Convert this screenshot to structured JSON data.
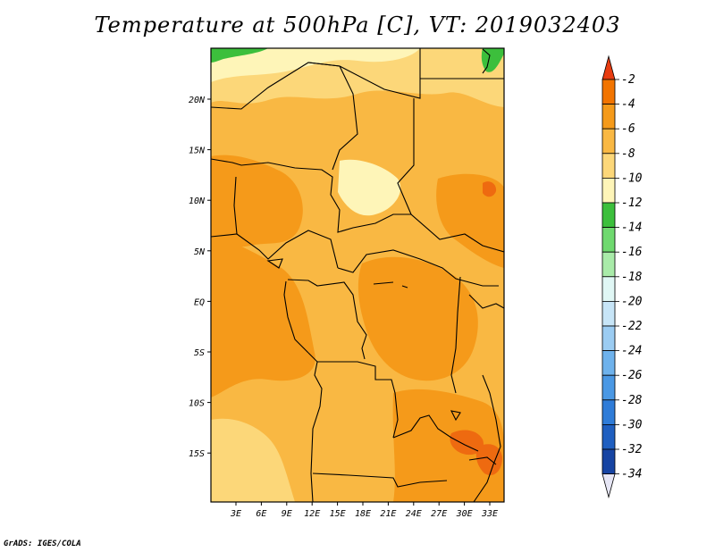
{
  "title": "Temperature at 500hPa [C], VT: 2019032403",
  "credit": "GrADS: IGES/COLA",
  "latitude_labels": [
    "20N",
    "15N",
    "10N",
    "5N",
    "EQ",
    "5S",
    "10S",
    "15S"
  ],
  "longitude_labels": [
    "3E",
    "6E",
    "9E",
    "12E",
    "15E",
    "18E",
    "21E",
    "24E",
    "27E",
    "30E",
    "33E"
  ],
  "colorbar": {
    "labels": [
      "-2",
      "-4",
      "-6",
      "-8",
      "-10",
      "-12",
      "-14",
      "-16",
      "-18",
      "-20",
      "-22",
      "-24",
      "-26",
      "-28",
      "-30",
      "-32",
      "-34"
    ],
    "colors": [
      "#e83c10",
      "#f27400",
      "#f59a1a",
      "#f9b843",
      "#fcd779",
      "#fef5b8",
      "#3cbf3c",
      "#6fd96f",
      "#a9eba9",
      "#e0f7f5",
      "#c7e5f7",
      "#9bccf2",
      "#6eb2ec",
      "#4a98e4",
      "#2f7cd8",
      "#1f5fc0",
      "#1644a3",
      "#0b1f6f"
    ],
    "top_arrow_color": "#e83c10",
    "bottom_arrow_color": "#e6e6f5"
  },
  "field_colors": {
    "warmest": "#ee6a10",
    "warm": "#f59a1a",
    "mid": "#f9b843",
    "cool": "#fcd779",
    "coolest": "#fef5b8",
    "green": "#3cbf3c"
  }
}
